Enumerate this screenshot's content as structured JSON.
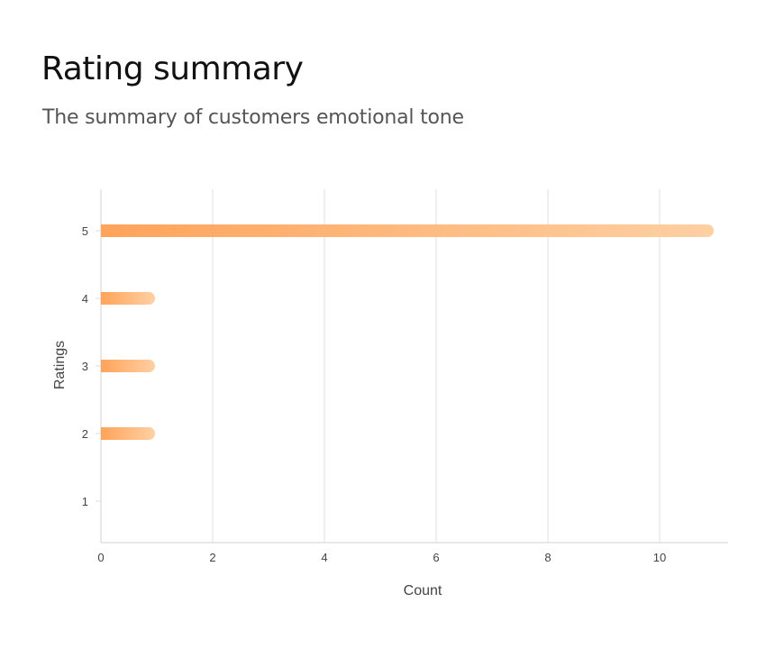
{
  "header": {
    "title": "Rating summary",
    "subtitle": "The summary of customers emotional tone"
  },
  "chart_data": {
    "type": "bar",
    "orientation": "horizontal",
    "title": "Rating summary",
    "subtitle": "The summary of customers emotional tone",
    "xlabel": "Count",
    "ylabel": "Ratings",
    "categories": [
      "5",
      "4",
      "3",
      "2",
      "1"
    ],
    "values": [
      11,
      1,
      1,
      1,
      0
    ],
    "xlim": [
      0,
      11.3
    ],
    "xticks": [
      "0",
      "2",
      "4",
      "6",
      "8",
      "10"
    ],
    "xtick_values": [
      0,
      2,
      4,
      6,
      8,
      10
    ],
    "grid": true,
    "legend": "none",
    "colors": {
      "bar_start": "#ffa35a",
      "bar_end": "#ffd0a3",
      "grid": "#ebebeb",
      "axis": "#e0e0e0"
    }
  }
}
